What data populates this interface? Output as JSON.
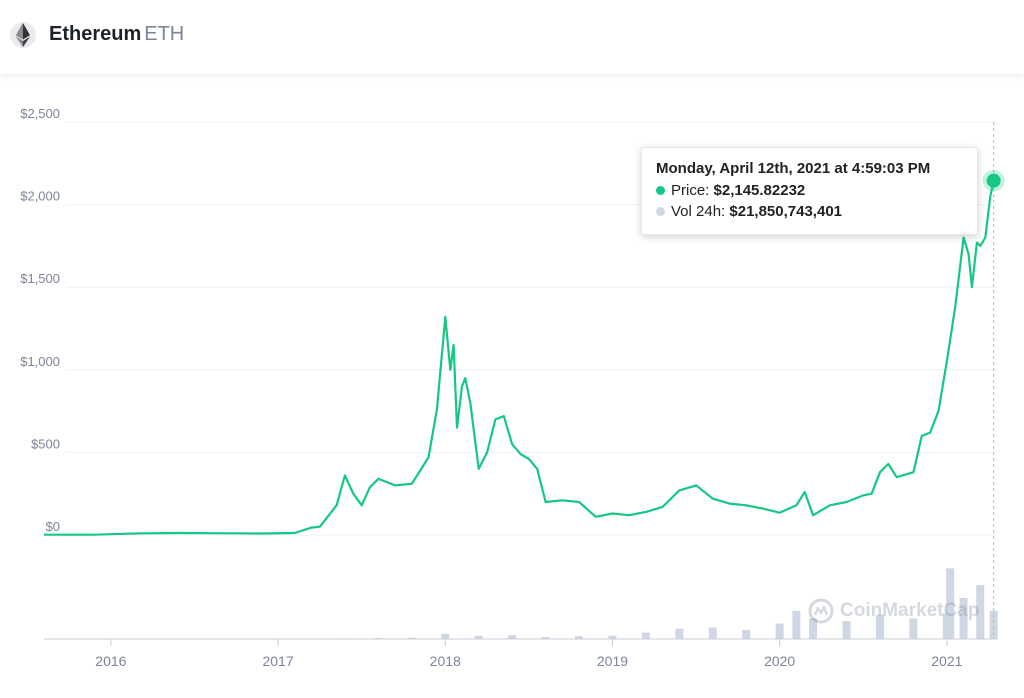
{
  "header": {
    "coin_name": "Ethereum",
    "coin_symbol": "ETH"
  },
  "tooltip": {
    "date": "Monday, April 12th, 2021 at 4:59:03 PM",
    "price_label": "Price:",
    "price_value": "$2,145.82232",
    "vol_label": "Vol 24h:",
    "vol_value": "$21,850,743,401"
  },
  "watermark": "CoinMarketCap",
  "colors": {
    "price_line": "#16c784",
    "volume": "#cfd6e4",
    "tooltip_vol_dot": "#d0d6e2",
    "text_muted": "#7d8596"
  },
  "chart_data": {
    "type": "line",
    "title": "",
    "xlabel": "",
    "ylabel": "",
    "ylim": [
      0,
      2500
    ],
    "yticks": [
      "$0",
      "$500",
      "$1,000",
      "$1,500",
      "$2,000",
      "$2,500"
    ],
    "ytick_values": [
      0,
      500,
      1000,
      1500,
      2000,
      2500
    ],
    "xticks": [
      "2016",
      "2017",
      "2018",
      "2019",
      "2020",
      "2021"
    ],
    "xtick_values": [
      2016,
      2017,
      2018,
      2019,
      2020,
      2021
    ],
    "xlim": [
      2015.6,
      2021.3
    ],
    "grid": true,
    "series": [
      {
        "type": "line",
        "x": [
          2015.6,
          2015.9,
          2016.1,
          2016.2,
          2016.4,
          2016.6,
          2016.9,
          2017.1,
          2017.2,
          2017.25,
          2017.35,
          2017.4,
          2017.45,
          2017.5,
          2017.55,
          2017.6,
          2017.7,
          2017.8,
          2017.9,
          2017.95,
          2018.0,
          2018.03,
          2018.05,
          2018.07,
          2018.1,
          2018.12,
          2018.15,
          2018.2,
          2018.25,
          2018.3,
          2018.35,
          2018.4,
          2018.45,
          2018.5,
          2018.55,
          2018.6,
          2018.7,
          2018.8,
          2018.9,
          2019.0,
          2019.1,
          2019.2,
          2019.3,
          2019.4,
          2019.5,
          2019.6,
          2019.7,
          2019.8,
          2019.9,
          2020.0,
          2020.1,
          2020.15,
          2020.2,
          2020.3,
          2020.4,
          2020.5,
          2020.55,
          2020.6,
          2020.65,
          2020.7,
          2020.8,
          2020.85,
          2020.9,
          2020.95,
          2021.0,
          2021.05,
          2021.1,
          2021.13,
          2021.15,
          2021.18,
          2021.2,
          2021.23,
          2021.26,
          2021.28
        ],
        "values": [
          2,
          2,
          8,
          10,
          12,
          11,
          9,
          12,
          45,
          50,
          180,
          360,
          250,
          180,
          290,
          340,
          300,
          310,
          470,
          760,
          1320,
          1000,
          1150,
          650,
          900,
          950,
          800,
          400,
          500,
          700,
          720,
          550,
          490,
          460,
          400,
          200,
          210,
          200,
          110,
          130,
          120,
          140,
          170,
          270,
          300,
          220,
          190,
          180,
          160,
          135,
          180,
          260,
          120,
          180,
          200,
          240,
          250,
          380,
          430,
          350,
          380,
          600,
          620,
          750,
          1050,
          1380,
          1800,
          1700,
          1500,
          1770,
          1750,
          1800,
          2050,
          2145
        ]
      },
      {
        "type": "bar",
        "name": "Vol 24h",
        "x": [
          2017.4,
          2017.6,
          2017.8,
          2018.0,
          2018.2,
          2018.4,
          2018.6,
          2018.8,
          2019.0,
          2019.2,
          2019.4,
          2019.6,
          2019.8,
          2020.0,
          2020.1,
          2020.2,
          2020.4,
          2020.6,
          2020.8,
          2021.0,
          2021.02,
          2021.1,
          2021.2,
          2021.28
        ],
        "values": [
          0.5,
          0.8,
          1.0,
          4.0,
          2.5,
          3.0,
          1.6,
          2.2,
          2.6,
          5.0,
          8.0,
          9.0,
          7.0,
          12.0,
          22.0,
          16.0,
          14.0,
          19.0,
          16.0,
          20.0,
          55.0,
          32.0,
          42.0,
          21.85
        ]
      }
    ]
  }
}
